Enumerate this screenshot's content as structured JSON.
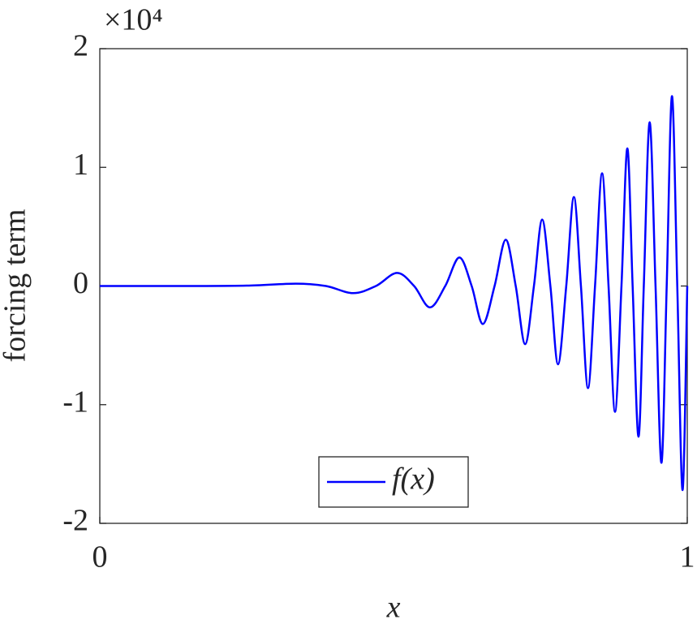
{
  "chart_data": {
    "type": "line",
    "ylabel": "forcing term",
    "xlabel": "x",
    "axis_multiplier": "×10⁴",
    "xlim": [
      0,
      1
    ],
    "xticks": [
      0,
      1
    ],
    "ylim": [
      -2,
      2
    ],
    "yticks": [
      2,
      1,
      0,
      -1,
      -2
    ],
    "legend": "bottom-center",
    "series": [
      {
        "name": "f(x)",
        "color": "#0000ff",
        "x": [
          0,
          0.15,
          0.25,
          0.334,
          0.385,
          0.431,
          0.47,
          0.506,
          0.535,
          0.562,
          0.588,
          0.612,
          0.633,
          0.652,
          0.672,
          0.691,
          0.708,
          0.724,
          0.739,
          0.753,
          0.767,
          0.78,
          0.794,
          0.807,
          0.819,
          0.831,
          0.843,
          0.855,
          0.866,
          0.877,
          0.888,
          0.898,
          0.907,
          0.917,
          0.926,
          0.936,
          0.946,
          0.956,
          0.965,
          0.974,
          0.983,
          0.992,
          1.0
        ],
        "values": [
          0,
          0,
          0.003,
          0.02,
          0,
          -0.06,
          0,
          0.11,
          0,
          -0.18,
          0,
          0.24,
          0,
          -0.32,
          0,
          0.39,
          0,
          -0.49,
          0,
          0.56,
          0,
          -0.66,
          0,
          0.75,
          0,
          -0.86,
          0,
          0.95,
          0,
          -1.06,
          0,
          1.16,
          0,
          -1.27,
          0,
          1.38,
          0,
          -1.49,
          0,
          1.6,
          0,
          -1.72,
          0
        ]
      }
    ]
  }
}
